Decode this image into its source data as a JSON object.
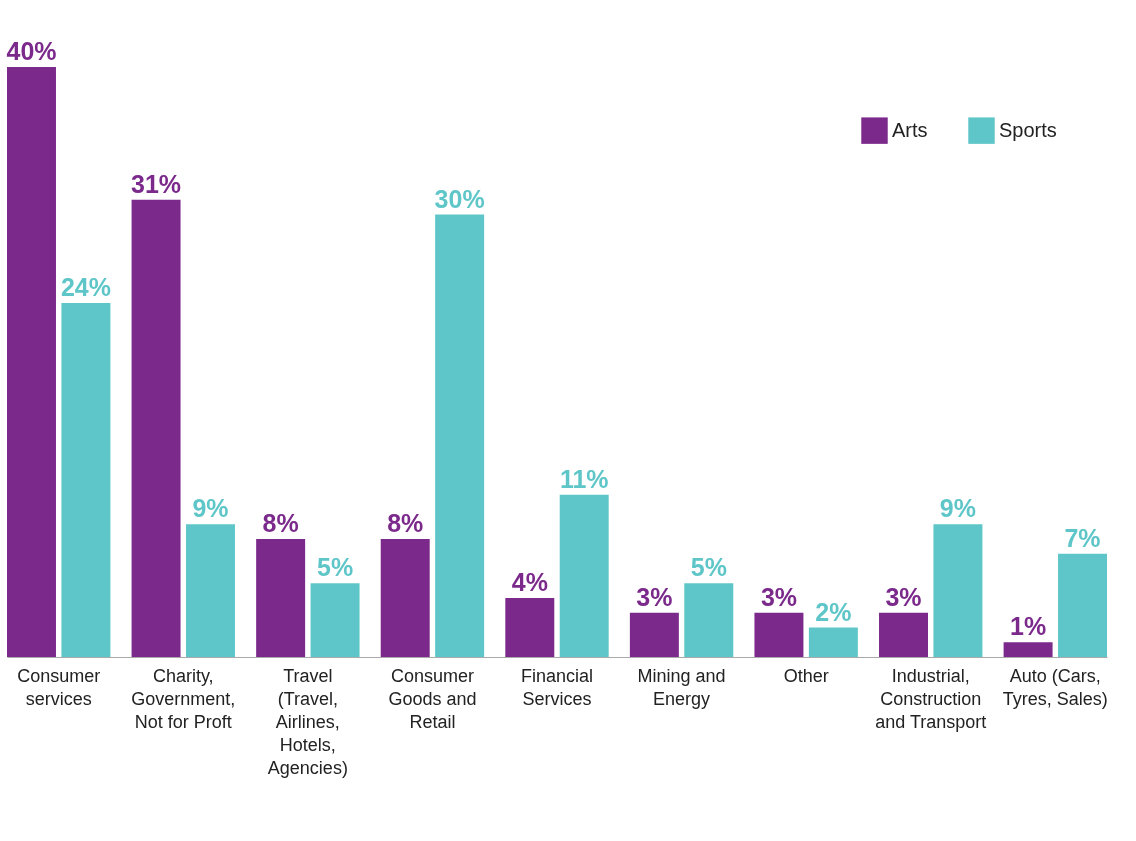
{
  "chart_data": {
    "type": "bar",
    "categories": [
      "Consumer services",
      "Charity, Government, Not for Proft",
      "Travel (Travel, Airlines, Hotels, Agencies)",
      "Consumer Goods and Retail",
      "Financial Services",
      "Mining and Energy",
      "Other",
      "Industrial, Construction and Transport",
      "Auto (Cars, Tyres, Sales)"
    ],
    "series": [
      {
        "name": "Arts",
        "color": "#7b2a8c",
        "values": [
          40,
          31,
          8,
          8,
          4,
          3,
          3,
          3,
          1
        ],
        "value_labels": [
          "40%",
          "31%",
          "8%",
          "8%",
          "4%",
          "3%",
          "3%",
          "3%",
          "1%"
        ]
      },
      {
        "name": "Sports",
        "color": "#5ec6c8",
        "values": [
          24,
          9,
          5,
          30,
          11,
          5,
          2,
          9,
          7
        ],
        "value_labels": [
          "24%",
          "9%",
          "5%",
          "30%",
          "11%",
          "5%",
          "2%",
          "9%",
          "7%"
        ]
      }
    ],
    "legend": "top right"
  }
}
